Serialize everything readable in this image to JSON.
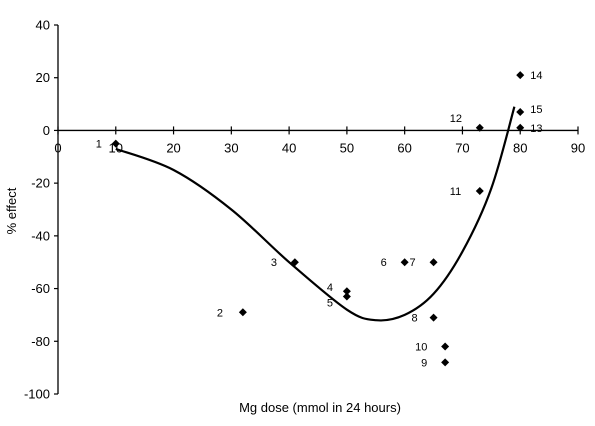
{
  "chart_data": {
    "type": "scatter",
    "title": "",
    "xlabel": "Mg dose (mmol in 24 hours)",
    "ylabel": "% effect",
    "xlim": [
      0,
      90
    ],
    "ylim": [
      -100,
      40
    ],
    "x_ticks": [
      0,
      10,
      20,
      30,
      40,
      50,
      60,
      70,
      80,
      90
    ],
    "y_ticks": [
      40,
      20,
      0,
      -20,
      -40,
      -60,
      -80,
      -100
    ],
    "grid": false,
    "legend": "none",
    "marker_color": "#000000",
    "series": [
      {
        "points": [
          {
            "label": "1",
            "x": 10,
            "y": -5
          },
          {
            "label": "2",
            "x": 32,
            "y": -69
          },
          {
            "label": "3",
            "x": 41,
            "y": -50
          },
          {
            "label": "4",
            "x": 50,
            "y": -61
          },
          {
            "label": "5",
            "x": 50,
            "y": -63
          },
          {
            "label": "6",
            "x": 60,
            "y": -50
          },
          {
            "label": "7",
            "x": 65,
            "y": -50
          },
          {
            "label": "8",
            "x": 65,
            "y": -71
          },
          {
            "label": "9",
            "x": 67,
            "y": -88
          },
          {
            "label": "10",
            "x": 67,
            "y": -82
          },
          {
            "label": "11",
            "x": 73,
            "y": -23
          },
          {
            "label": "12",
            "x": 73,
            "y": 1
          },
          {
            "label": "13",
            "x": 80,
            "y": 1
          },
          {
            "label": "14",
            "x": 80,
            "y": 21
          },
          {
            "label": "15",
            "x": 80,
            "y": 7
          }
        ]
      },
      {
        "type": "line",
        "smooth": true,
        "x": [
          10,
          20,
          30,
          40,
          50,
          55,
          60,
          65,
          70,
          75,
          79
        ],
        "y": [
          -7,
          -15,
          -30,
          -50,
          -68,
          -72,
          -70,
          -62,
          -46,
          -22,
          9
        ]
      }
    ]
  }
}
